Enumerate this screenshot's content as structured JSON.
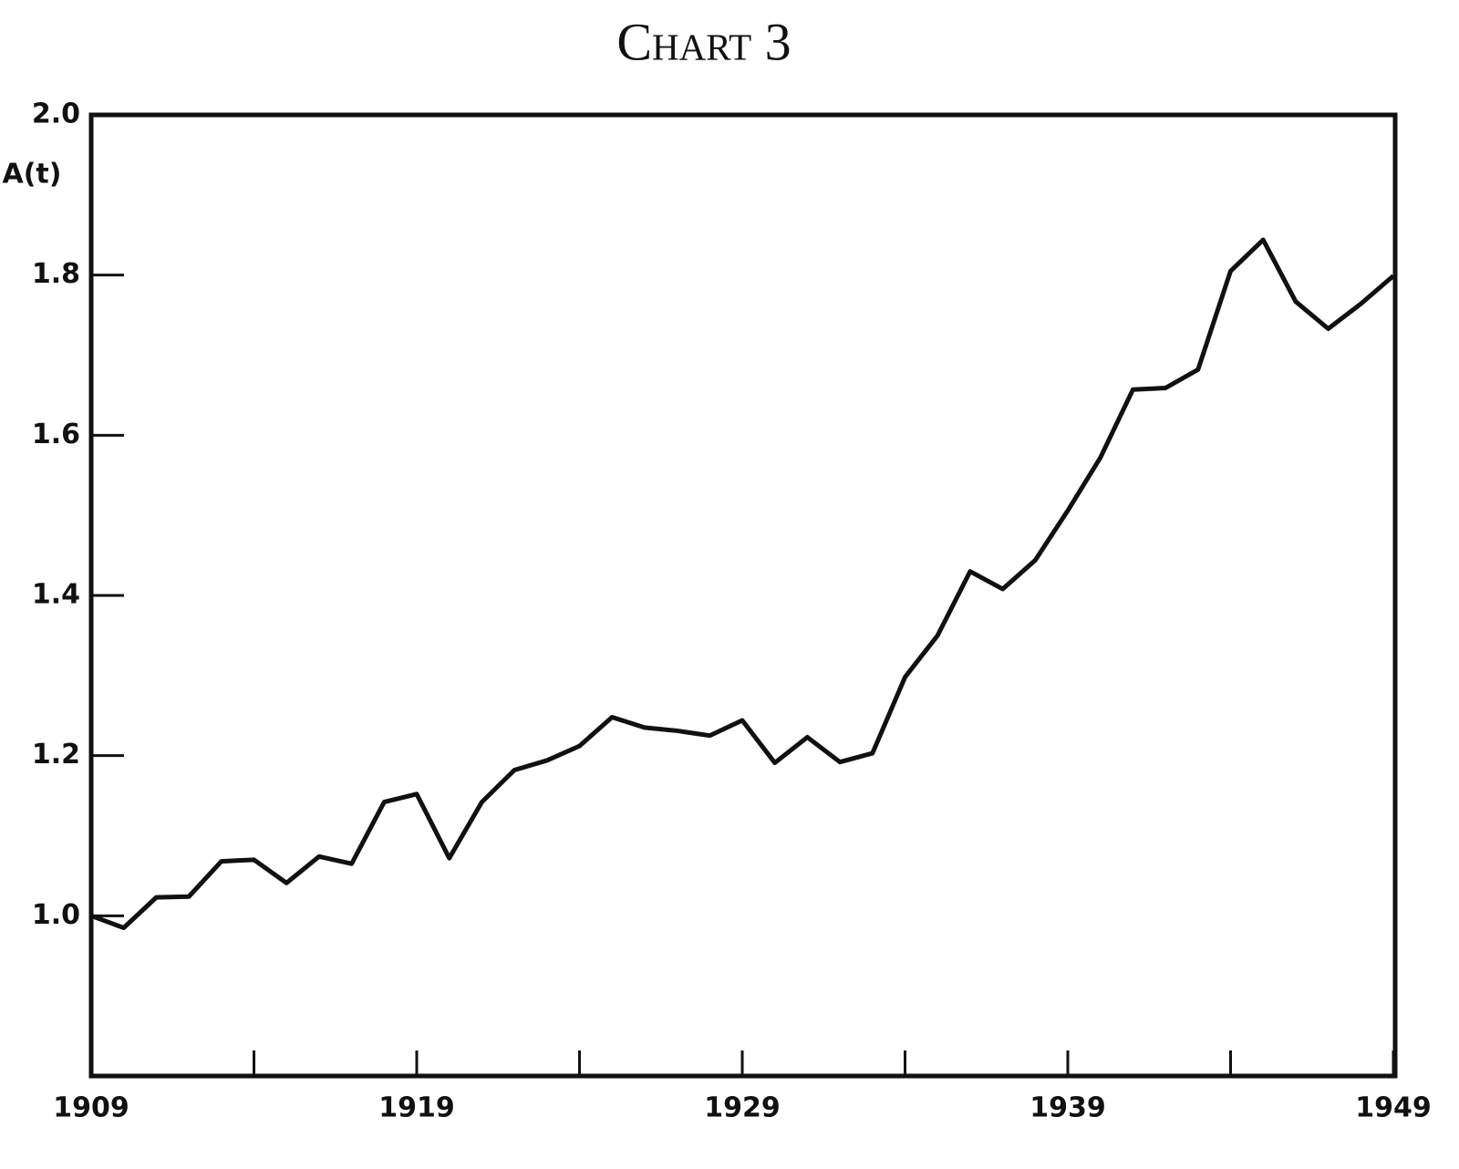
{
  "chart_data": {
    "type": "line",
    "title": "Chart 3",
    "ylabel": "A(t)",
    "x": [
      1909,
      1910,
      1911,
      1912,
      1913,
      1914,
      1915,
      1916,
      1917,
      1918,
      1919,
      1920,
      1921,
      1922,
      1923,
      1924,
      1925,
      1926,
      1927,
      1928,
      1929,
      1930,
      1931,
      1932,
      1933,
      1934,
      1935,
      1936,
      1937,
      1938,
      1939,
      1940,
      1941,
      1942,
      1943,
      1944,
      1945,
      1946,
      1947,
      1948,
      1949
    ],
    "series": [
      {
        "name": "A(t)",
        "color": "#111111",
        "values": [
          1.0,
          0.985,
          1.023,
          1.024,
          1.068,
          1.07,
          1.041,
          1.074,
          1.065,
          1.142,
          1.152,
          1.072,
          1.142,
          1.182,
          1.194,
          1.212,
          1.248,
          1.235,
          1.231,
          1.225,
          1.244,
          1.191,
          1.223,
          1.192,
          1.203,
          1.298,
          1.35,
          1.43,
          1.408,
          1.444,
          1.506,
          1.572,
          1.657,
          1.659,
          1.682,
          1.805,
          1.844,
          1.767,
          1.733,
          1.764,
          1.799
        ]
      }
    ],
    "xlim": [
      1909,
      1949
    ],
    "xticks": [
      1909,
      1919,
      1929,
      1939,
      1949
    ],
    "xminor_ticks": [
      1914,
      1924,
      1934,
      1944
    ],
    "ylim": [
      0.8,
      2.0
    ],
    "yticks": [
      {
        "value": 1,
        "label": "1.0"
      },
      1.2,
      1.4,
      1.6,
      1.8,
      {
        "value": 2,
        "label": "2.0"
      }
    ]
  }
}
